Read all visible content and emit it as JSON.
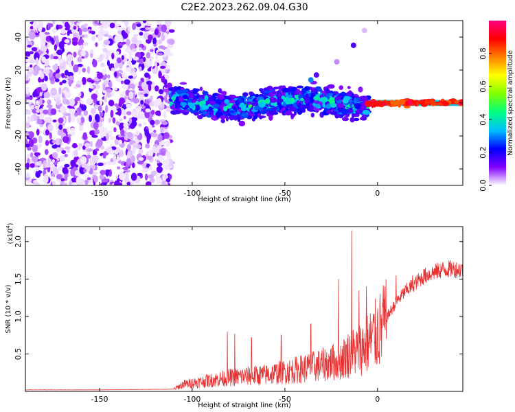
{
  "figure": {
    "title": "C2E2.2023.262.09.04.G30"
  },
  "chart_data": [
    {
      "type": "heatmap",
      "xlabel": "Height of straight line (km)",
      "ylabel": "Frequency (Hz)",
      "xlim": [
        -190,
        46
      ],
      "ylim": [
        -50,
        50
      ],
      "x_ticks": [
        -150,
        -100,
        -50,
        0
      ],
      "y_ticks": [
        -40,
        -20,
        0,
        20,
        40
      ],
      "colorbar": {
        "label": "Normalized spectral amplitude",
        "range": [
          0,
          1
        ],
        "ticks": [
          "0.0",
          "0.2",
          "0.4",
          "0.6",
          "0.8"
        ],
        "colormap": [
          "#ffffff",
          "#8000ff",
          "#0000ff",
          "#00c0ff",
          "#00ff80",
          "#80ff00",
          "#ffff00",
          "#ff8000",
          "#ff0000",
          "#ff0080"
        ]
      },
      "regions": [
        {
          "x_range": [
            -190,
            -111
          ],
          "description": "scattered low-amplitude noise across all frequencies",
          "amplitude_range": [
            0.0,
            0.15
          ]
        },
        {
          "x_range": [
            -111,
            -5
          ],
          "center_freq": 0,
          "freq_halfwidth": 8,
          "amplitude_range": [
            0.1,
            0.5
          ]
        },
        {
          "x_range": [
            -5,
            46
          ],
          "center_freq": 0,
          "freq_halfwidth": 1.5,
          "amplitude_range": [
            0.8,
            1.0
          ]
        }
      ],
      "harmonic_blobs": [
        {
          "x": -36,
          "y": 14,
          "amplitude": 0.3
        },
        {
          "x": -33,
          "y": 17,
          "amplitude": 0.15
        },
        {
          "x": -22,
          "y": 25,
          "amplitude": 0.05
        },
        {
          "x": -13,
          "y": 35,
          "amplitude": 0.15
        },
        {
          "x": -7,
          "y": 44,
          "amplitude": 0.03
        }
      ]
    },
    {
      "type": "line",
      "xlabel": "Height of straight line (km)",
      "ylabel": "SNR (10 * v/v)",
      "y_multiplier": "(x10",
      "y_multiplier_exp": "4",
      "y_multiplier_close": ")",
      "xlim": [
        -190,
        46
      ],
      "ylim": [
        0,
        2.2
      ],
      "x_ticks": [
        -150,
        -100,
        -50,
        0
      ],
      "y_ticks": [
        0.5,
        1.0,
        1.5,
        2.0
      ],
      "color": "#e83030",
      "series": [
        {
          "x": [
            -190,
            -150,
            -110,
            -105,
            -100,
            -90,
            -80,
            -70,
            -60,
            -50,
            -40,
            -30,
            -20,
            -15,
            -10,
            -5,
            0,
            5,
            10,
            15,
            20,
            25,
            30,
            35,
            40,
            46
          ],
          "y": [
            0.02,
            0.02,
            0.03,
            0.1,
            0.12,
            0.16,
            0.2,
            0.22,
            0.24,
            0.28,
            0.33,
            0.38,
            0.45,
            0.55,
            0.6,
            0.7,
            0.85,
            1.0,
            1.2,
            1.35,
            1.45,
            1.55,
            1.6,
            1.64,
            1.65,
            1.64
          ],
          "peaks": [
            [
              -81,
              0.8
            ],
            [
              -77,
              0.77
            ],
            [
              -68,
              0.72
            ],
            [
              -52,
              0.75
            ],
            [
              -36,
              0.9
            ],
            [
              -21,
              1.5
            ],
            [
              -14,
              2.15
            ],
            [
              -10,
              1.35
            ],
            [
              -6,
              1.4
            ],
            [
              3,
              1.3
            ],
            [
              10,
              1.55
            ],
            [
              19,
              1.55
            ],
            [
              25,
              1.62
            ]
          ]
        }
      ]
    }
  ]
}
